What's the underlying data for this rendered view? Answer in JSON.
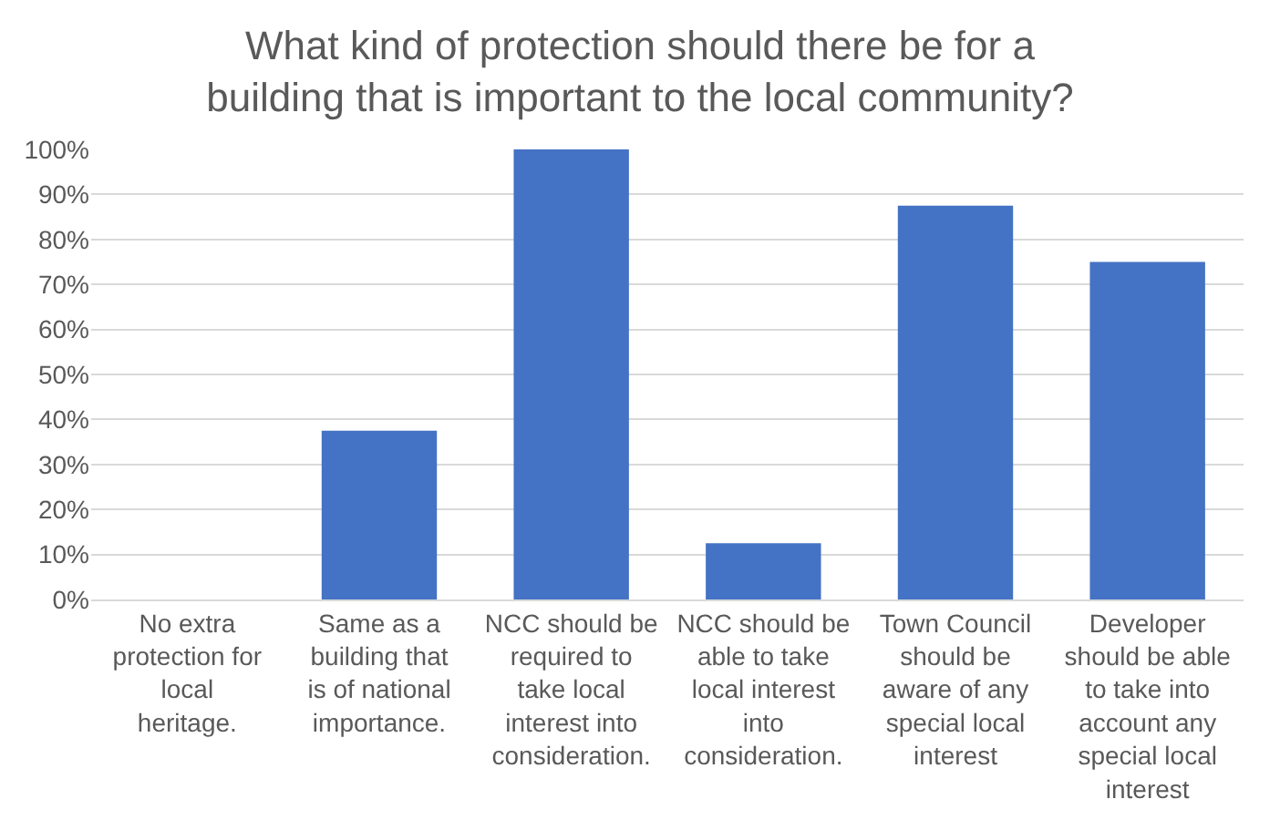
{
  "chart_data": {
    "type": "bar",
    "title": "What kind of protection should there be for a building that is important to the local community?",
    "categories": [
      "No extra protection for local heritage.",
      "Same as a building that is of national importance.",
      "NCC should be required to take local interest into consideration.",
      "NCC should be able to take local interest into consideration.",
      "Town Council should be aware of any special local interest",
      "Developer should be able to take into account any special local interest"
    ],
    "values": [
      0,
      37.5,
      100,
      12.5,
      87.5,
      75
    ],
    "color": "#4472c4",
    "ylim": [
      0,
      100
    ],
    "yticks": [
      {
        "value": 0,
        "label": "0%"
      },
      {
        "value": 10,
        "label": "10%"
      },
      {
        "value": 20,
        "label": "20%"
      },
      {
        "value": 30,
        "label": "30%"
      },
      {
        "value": 40,
        "label": "40%"
      },
      {
        "value": 50,
        "label": "50%"
      },
      {
        "value": 60,
        "label": "60%"
      },
      {
        "value": 70,
        "label": "70%"
      },
      {
        "value": 80,
        "label": "80%"
      },
      {
        "value": 90,
        "label": "90%"
      },
      {
        "value": 100,
        "label": "100%"
      }
    ],
    "grid": "y"
  }
}
